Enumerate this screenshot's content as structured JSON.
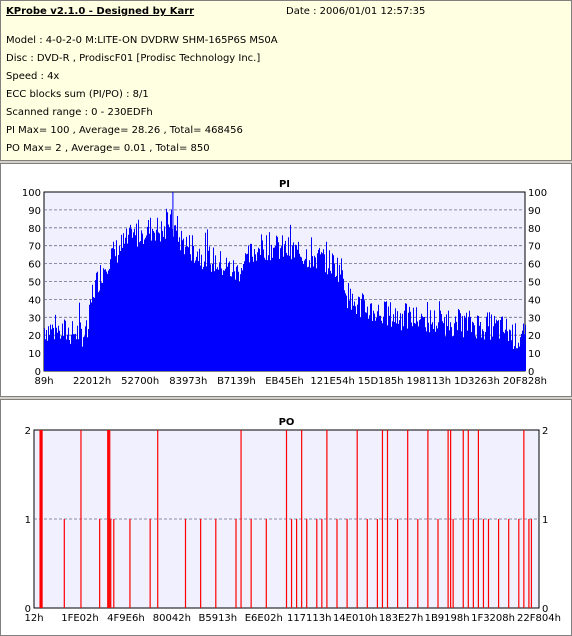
{
  "header": {
    "title": "KProbe v2.1.0 - Designed by Karr",
    "date": "Date : 2006/01/01 12:57:35",
    "lines": [
      "Model : 4-0-2-0 M:LITE-ON DVDRW SHM-165P6S MS0A",
      "Disc : DVD-R , ProdiscF01 [Prodisc Technology Inc.]",
      "Speed : 4x",
      "ECC blocks sum (PI/PO) : 8/1",
      "Scanned range : 0 - 230EDFh",
      "PI Max= 100 , Average= 28.26 , Total= 468456",
      "PO Max= 2 , Average= 0.01 , Total= 850"
    ]
  },
  "colors": {
    "pi": "#0000ff",
    "po": "#ff0000",
    "plot_bg": "#f0f0ff",
    "grid": "#6a6a8a"
  },
  "chart_data": [
    {
      "type": "area",
      "title": "PI",
      "ylim": [
        0,
        100
      ],
      "yticks": [
        0,
        10,
        20,
        30,
        40,
        50,
        60,
        70,
        80,
        90,
        100
      ],
      "xticks": [
        "89h",
        "22012h",
        "52700h",
        "83973h",
        "B7139h",
        "EB45Eh",
        "121E54h",
        "15D185h",
        "198113h",
        "1D3263h",
        "20F828h"
      ],
      "x_position_ticks": [
        0.0,
        0.1,
        0.2,
        0.3,
        0.4,
        0.5,
        0.6,
        0.7,
        0.8,
        0.9,
        1.0
      ],
      "x_position": [
        0.0,
        0.04,
        0.09,
        0.1,
        0.13,
        0.17,
        0.2,
        0.23,
        0.25,
        0.26,
        0.28,
        0.3,
        0.32,
        0.35,
        0.38,
        0.4,
        0.42,
        0.44,
        0.46,
        0.5,
        0.53,
        0.56,
        0.58,
        0.6,
        0.62,
        0.63,
        0.64,
        0.66,
        0.7,
        0.75,
        0.8,
        0.85,
        0.9,
        0.93,
        0.96,
        0.98,
        1.0
      ],
      "values": [
        24,
        22,
        21,
        44,
        62,
        72,
        78,
        80,
        77,
        85,
        74,
        70,
        66,
        62,
        58,
        55,
        62,
        68,
        70,
        68,
        66,
        64,
        62,
        60,
        56,
        43,
        38,
        36,
        32,
        30,
        28,
        27,
        26,
        25,
        23,
        19,
        18
      ],
      "peak": {
        "x_position": 0.268,
        "value": 100
      }
    },
    {
      "type": "bar",
      "title": "PO",
      "ylim": [
        0,
        2
      ],
      "yticks": [
        0,
        1,
        2
      ],
      "xticks": [
        "12h",
        "1FE02h",
        "4F9E6h",
        "80042h",
        "B5913h",
        "E6E02h",
        "117113h",
        "14E010h",
        "183E27h",
        "1B9198h",
        "1F3208h",
        "22F804h"
      ],
      "x_position_ticks": [
        0.0,
        0.091,
        0.182,
        0.273,
        0.364,
        0.455,
        0.545,
        0.636,
        0.727,
        0.818,
        0.909,
        1.0
      ],
      "x_position": [
        0.012,
        0.014,
        0.016,
        0.06,
        0.093,
        0.13,
        0.146,
        0.148,
        0.15,
        0.152,
        0.158,
        0.19,
        0.23,
        0.245,
        0.3,
        0.33,
        0.36,
        0.4,
        0.41,
        0.43,
        0.46,
        0.5,
        0.51,
        0.52,
        0.53,
        0.54,
        0.56,
        0.57,
        0.58,
        0.6,
        0.62,
        0.64,
        0.66,
        0.68,
        0.69,
        0.7,
        0.72,
        0.74,
        0.76,
        0.78,
        0.8,
        0.82,
        0.825,
        0.83,
        0.85,
        0.86,
        0.87,
        0.88,
        0.89,
        0.9,
        0.92,
        0.94,
        0.96,
        0.97,
        0.98,
        0.985
      ],
      "values": [
        2,
        2,
        2,
        1,
        2,
        1,
        2,
        2,
        2,
        1,
        1,
        1,
        1,
        2,
        1,
        1,
        1,
        1,
        2,
        1,
        1,
        2,
        1,
        1,
        2,
        1,
        1,
        1,
        2,
        1,
        1,
        2,
        1,
        1,
        2,
        2,
        1,
        2,
        1,
        2,
        1,
        2,
        2,
        1,
        2,
        2,
        1,
        2,
        1,
        1,
        1,
        1,
        1,
        2,
        1,
        1
      ]
    }
  ]
}
